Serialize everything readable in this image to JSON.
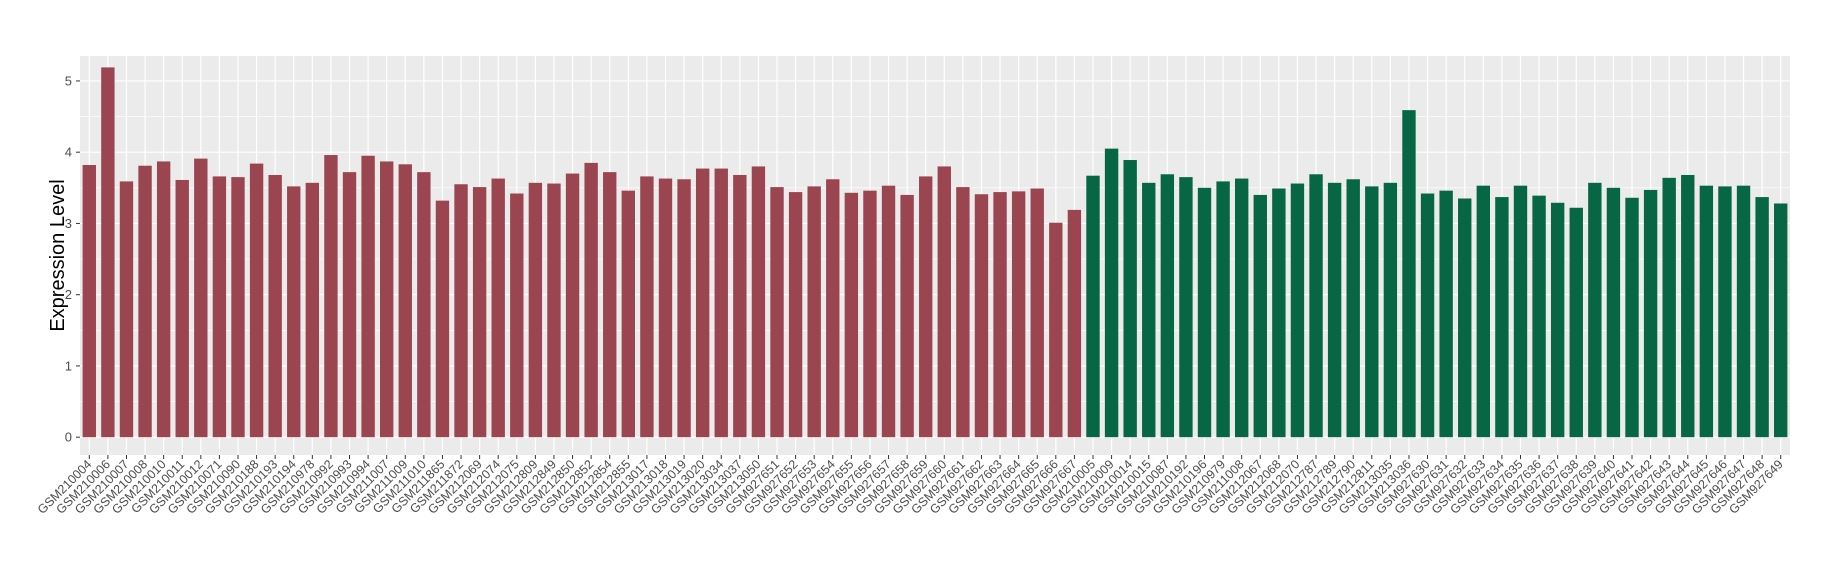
{
  "chart_data": {
    "type": "bar",
    "title": "",
    "xlabel": "",
    "ylabel": "Expression Level",
    "ylim": [
      -0.25,
      5.35
    ],
    "yticks": [
      0,
      1,
      2,
      3,
      4,
      5
    ],
    "grid": true,
    "legend": "none",
    "categories": [
      "GSM210004",
      "GSM210006",
      "GSM210007",
      "GSM210008",
      "GSM210010",
      "GSM210011",
      "GSM210012",
      "GSM210071",
      "GSM210090",
      "GSM210188",
      "GSM210193",
      "GSM210194",
      "GSM210978",
      "GSM210992",
      "GSM210993",
      "GSM210994",
      "GSM211007",
      "GSM211009",
      "GSM211010",
      "GSM211865",
      "GSM211872",
      "GSM212069",
      "GSM212074",
      "GSM212075",
      "GSM212809",
      "GSM212849",
      "GSM212850",
      "GSM212852",
      "GSM212854",
      "GSM212855",
      "GSM213017",
      "GSM213018",
      "GSM213019",
      "GSM213020",
      "GSM213034",
      "GSM213037",
      "GSM213050",
      "GSM927651",
      "GSM927652",
      "GSM927653",
      "GSM927654",
      "GSM927655",
      "GSM927656",
      "GSM927657",
      "GSM927658",
      "GSM927659",
      "GSM927660",
      "GSM927661",
      "GSM927662",
      "GSM927663",
      "GSM927664",
      "GSM927665",
      "GSM927666",
      "GSM927667",
      "GSM210005",
      "GSM210009",
      "GSM210014",
      "GSM210015",
      "GSM210087",
      "GSM210192",
      "GSM210196",
      "GSM210979",
      "GSM211008",
      "GSM212067",
      "GSM212068",
      "GSM212070",
      "GSM212787",
      "GSM212789",
      "GSM212790",
      "GSM212811",
      "GSM213035",
      "GSM213036",
      "GSM927630",
      "GSM927631",
      "GSM927632",
      "GSM927633",
      "GSM927634",
      "GSM927635",
      "GSM927636",
      "GSM927637",
      "GSM927638",
      "GSM927639",
      "GSM927640",
      "GSM927641",
      "GSM927642",
      "GSM927643",
      "GSM927644",
      "GSM927645",
      "GSM927646",
      "GSM927647",
      "GSM927648",
      "GSM927649"
    ],
    "values": [
      3.82,
      5.19,
      3.59,
      3.81,
      3.87,
      3.61,
      3.91,
      3.66,
      3.65,
      3.84,
      3.68,
      3.52,
      3.57,
      3.96,
      3.72,
      3.95,
      3.87,
      3.83,
      3.72,
      3.32,
      3.55,
      3.51,
      3.63,
      3.42,
      3.57,
      3.56,
      3.7,
      3.85,
      3.72,
      3.46,
      3.66,
      3.63,
      3.62,
      3.77,
      3.77,
      3.68,
      3.8,
      3.51,
      3.44,
      3.52,
      3.62,
      3.43,
      3.46,
      3.53,
      3.4,
      3.66,
      3.8,
      3.51,
      3.41,
      3.44,
      3.45,
      3.49,
      3.01,
      3.19,
      3.67,
      4.05,
      3.89,
      3.57,
      3.69,
      3.65,
      3.5,
      3.59,
      3.63,
      3.4,
      3.49,
      3.56,
      3.69,
      3.57,
      3.62,
      3.52,
      3.57,
      4.59,
      3.42,
      3.46,
      3.35,
      3.53,
      3.37,
      3.53,
      3.39,
      3.29,
      3.22,
      3.57,
      3.5,
      3.36,
      3.47,
      3.64,
      3.68,
      3.53,
      3.52,
      3.53,
      3.37,
      3.28
    ],
    "groups": [
      {
        "count": 54,
        "color": "#9b4550"
      },
      {
        "count": 38,
        "color": "#076644"
      }
    ],
    "panel_background": "#ebebeb",
    "grid_color": "#ffffff"
  }
}
